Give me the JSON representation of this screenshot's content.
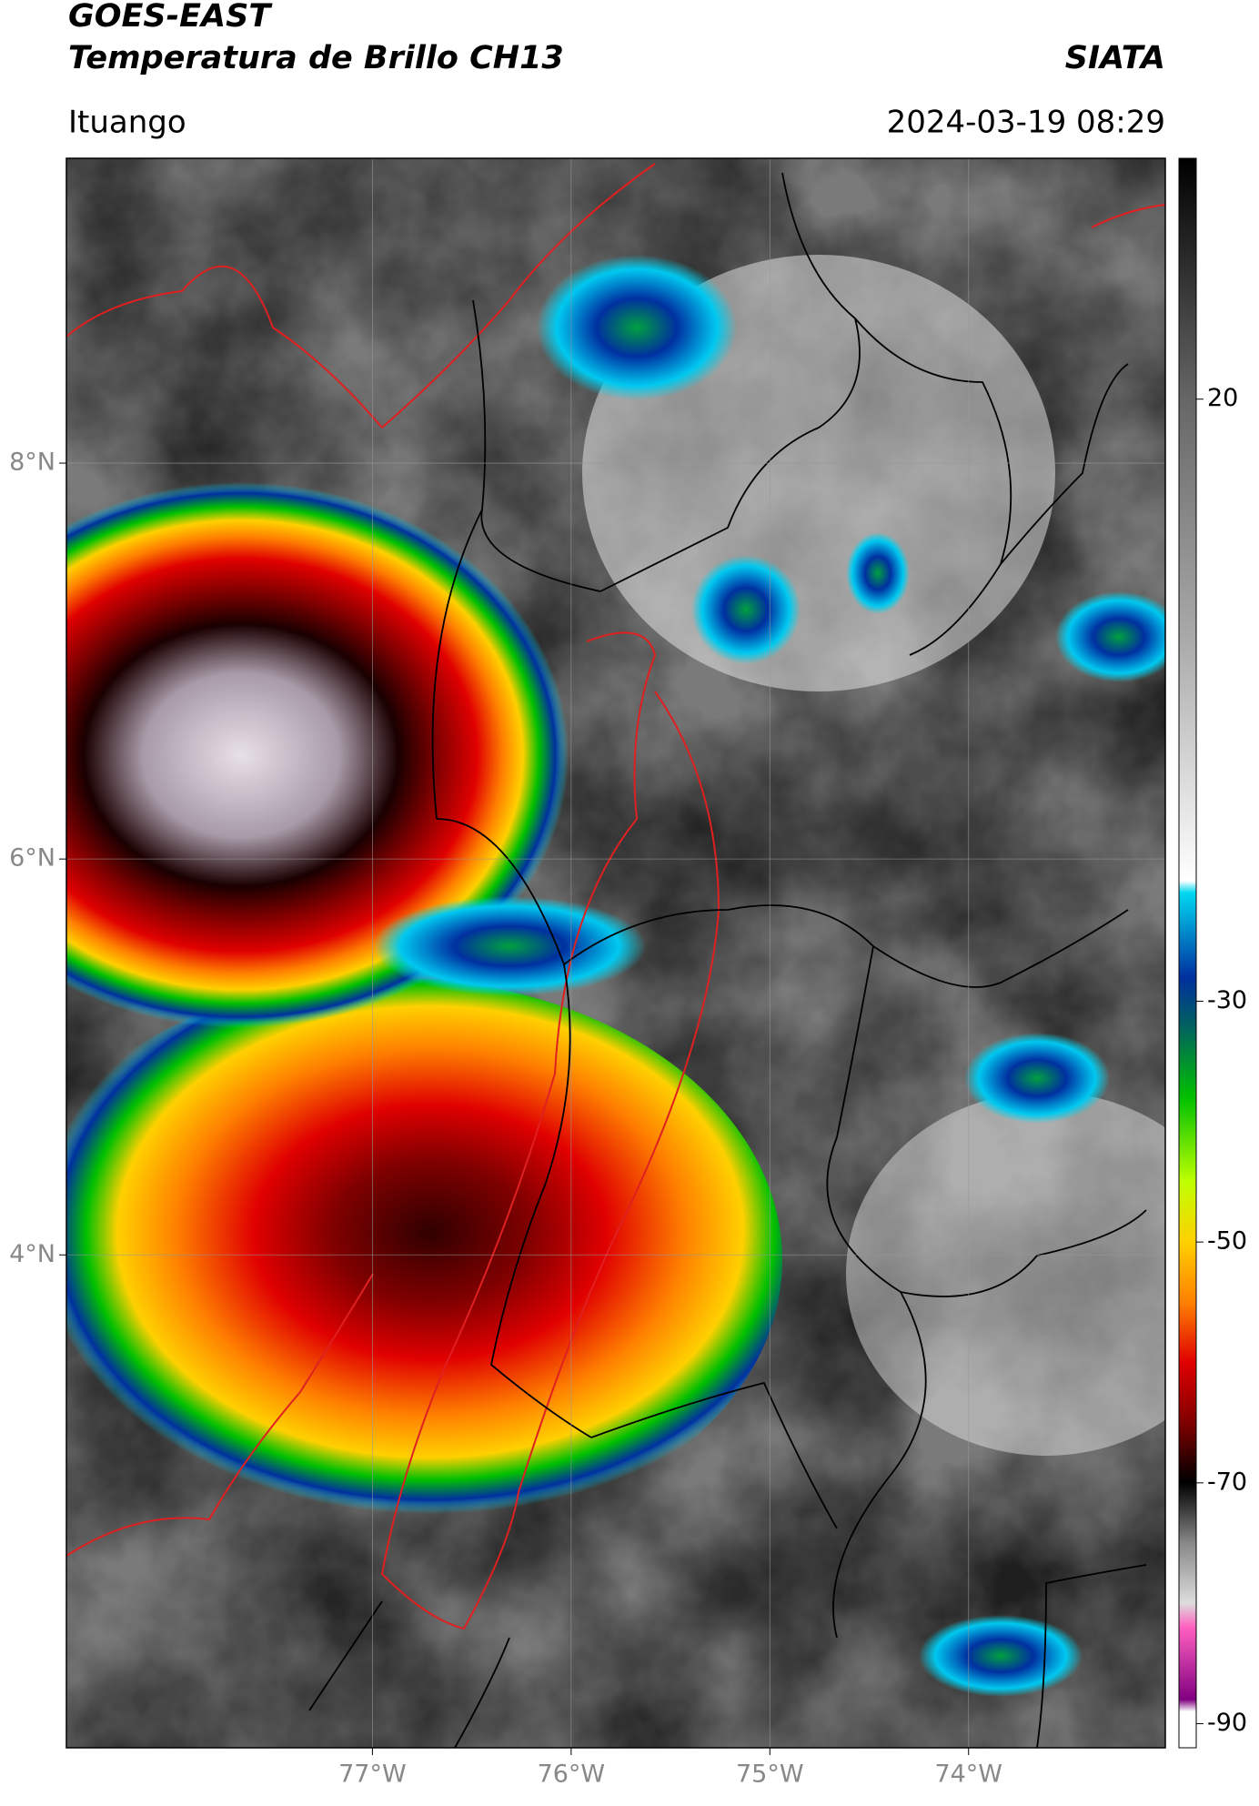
{
  "header": {
    "satellite": "GOES-EAST",
    "product": "Temperatura de Brillo CH13",
    "institution": "SIATA",
    "location": "Ituango",
    "datetime": "2024-03-19 08:29"
  },
  "map": {
    "xlim": [
      -78.54,
      -73.01
    ],
    "ylim": [
      1.51,
      9.54
    ],
    "xticks": [
      {
        "value": -77,
        "label": "77°W"
      },
      {
        "value": -76,
        "label": "76°W"
      },
      {
        "value": -75,
        "label": "75°W"
      },
      {
        "value": -74,
        "label": "74°W"
      }
    ],
    "yticks": [
      {
        "value": 8,
        "label": "8°N"
      },
      {
        "value": 6,
        "label": "6°N"
      },
      {
        "value": 4,
        "label": "4°N"
      }
    ],
    "grid": true
  },
  "colorbar": {
    "lim": [
      -92,
      40
    ],
    "ticks": [
      20,
      -30,
      -50,
      -70,
      -90
    ],
    "stops": [
      {
        "value": 40,
        "color": "#000000"
      },
      {
        "value": 30,
        "color": "#333333"
      },
      {
        "value": 20,
        "color": "#666666"
      },
      {
        "value": 0,
        "color": "#aaaaaa"
      },
      {
        "value": -20,
        "color": "#ffffff"
      },
      {
        "value": -21,
        "color": "#00d8f0"
      },
      {
        "value": -28,
        "color": "#0030a0"
      },
      {
        "value": -32,
        "color": "#006060"
      },
      {
        "value": -38,
        "color": "#00c000"
      },
      {
        "value": -45,
        "color": "#c0ff00"
      },
      {
        "value": -50,
        "color": "#ffd000"
      },
      {
        "value": -55,
        "color": "#ff8000"
      },
      {
        "value": -60,
        "color": "#e00000"
      },
      {
        "value": -65,
        "color": "#800000"
      },
      {
        "value": -68,
        "color": "#300000"
      },
      {
        "value": -70,
        "color": "#000000"
      },
      {
        "value": -75,
        "color": "#888888"
      },
      {
        "value": -80,
        "color": "#dddddd"
      },
      {
        "value": -82,
        "color": "#ff60c0"
      },
      {
        "value": -88,
        "color": "#800080"
      },
      {
        "value": -89,
        "color": "#ffffff"
      },
      {
        "value": -92,
        "color": "#ffffff"
      }
    ]
  }
}
